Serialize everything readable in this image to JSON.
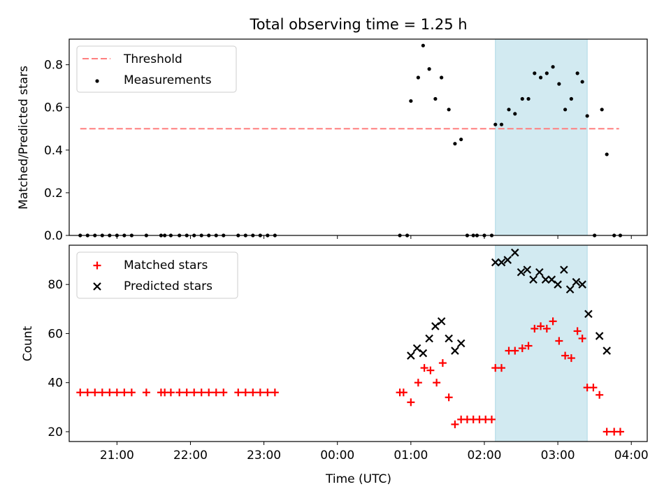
{
  "title": "Total observing time = 1.25 h",
  "xlabel": "Time (UTC)",
  "x_tick_labels": [
    "21:00",
    "22:00",
    "23:00",
    "00:00",
    "01:00",
    "02:00",
    "03:00",
    "04:00"
  ],
  "colors": {
    "threshold": "#ff7f7f",
    "measurement": "#000000",
    "matched": "#ff0000",
    "predicted": "#000000",
    "highlight": "#add8e6"
  },
  "chart_data": [
    {
      "type": "scatter",
      "ylabel": "Matched/Predicted stars",
      "xlim": [
        "20:21",
        "04:13"
      ],
      "ylim": [
        0,
        0.92
      ],
      "y_ticks": [
        "0.0",
        "0.2",
        "0.4",
        "0.6",
        "0.8"
      ],
      "grid": false,
      "legend_position": "top-left",
      "highlight_span": [
        "02:09",
        "03:24"
      ],
      "threshold": {
        "name": "Threshold",
        "value": 0.5,
        "x_range": [
          "20:30",
          "03:50"
        ],
        "style": "dashed"
      },
      "series": [
        {
          "name": "Measurements",
          "marker": "dot",
          "x": [
            "20:30",
            "20:36",
            "20:42",
            "20:48",
            "20:54",
            "21:00",
            "21:06",
            "21:12",
            "21:24",
            "21:36",
            "21:39",
            "21:44",
            "21:51",
            "21:57",
            "22:03",
            "22:09",
            "22:15",
            "22:21",
            "22:27",
            "22:39",
            "22:45",
            "22:51",
            "22:57",
            "23:03",
            "23:09",
            "00:51",
            "00:57",
            "01:00",
            "01:06",
            "01:10",
            "01:15",
            "01:20",
            "01:25",
            "01:31",
            "01:36",
            "01:41",
            "01:46",
            "01:51",
            "01:54",
            "02:00",
            "02:06",
            "02:09",
            "02:14",
            "02:20",
            "02:25",
            "02:31",
            "02:36",
            "02:41",
            "02:46",
            "02:51",
            "02:56",
            "03:01",
            "03:06",
            "03:11",
            "03:16",
            "03:20",
            "03:24",
            "03:30",
            "03:36",
            "03:40",
            "03:46",
            "03:51"
          ],
          "y": [
            0,
            0,
            0,
            0,
            0,
            0,
            0,
            0,
            0,
            0,
            0,
            0,
            0,
            0,
            0,
            0,
            0,
            0,
            0,
            0,
            0,
            0,
            0,
            0,
            0,
            0,
            0,
            0.63,
            0.74,
            0.89,
            0.78,
            0.64,
            0.74,
            0.59,
            0.43,
            0.45,
            0,
            0,
            0,
            0,
            0,
            0.52,
            0.52,
            0.59,
            0.57,
            0.64,
            0.64,
            0.76,
            0.74,
            0.76,
            0.79,
            0.71,
            0.59,
            0.64,
            0.76,
            0.72,
            0.56,
            0,
            0.59,
            0.38,
            0,
            0
          ]
        }
      ]
    },
    {
      "type": "scatter",
      "ylabel": "Count",
      "xlim": [
        "20:21",
        "04:13"
      ],
      "ylim": [
        16,
        96
      ],
      "y_ticks": [
        "20",
        "40",
        "60",
        "80"
      ],
      "grid": false,
      "legend_position": "top-left",
      "highlight_span": [
        "02:09",
        "03:24"
      ],
      "series": [
        {
          "name": "Matched stars",
          "marker": "plus",
          "x": [
            "20:30",
            "20:36",
            "20:42",
            "20:48",
            "20:54",
            "21:00",
            "21:06",
            "21:12",
            "21:24",
            "21:36",
            "21:39",
            "21:44",
            "21:51",
            "21:57",
            "22:03",
            "22:09",
            "22:15",
            "22:21",
            "22:27",
            "22:39",
            "22:45",
            "22:51",
            "22:57",
            "23:03",
            "23:09",
            "00:51",
            "00:54",
            "01:00",
            "01:06",
            "01:11",
            "01:16",
            "01:21",
            "01:26",
            "01:31",
            "01:36",
            "01:41",
            "01:46",
            "01:51",
            "01:56",
            "02:01",
            "02:06",
            "02:09",
            "02:14",
            "02:20",
            "02:25",
            "02:31",
            "02:36",
            "02:41",
            "02:46",
            "02:51",
            "02:56",
            "03:01",
            "03:06",
            "03:11",
            "03:16",
            "03:20",
            "03:24",
            "03:29",
            "03:34",
            "03:40",
            "03:46",
            "03:51"
          ],
          "y": [
            36,
            36,
            36,
            36,
            36,
            36,
            36,
            36,
            36,
            36,
            36,
            36,
            36,
            36,
            36,
            36,
            36,
            36,
            36,
            36,
            36,
            36,
            36,
            36,
            36,
            36,
            36,
            32,
            40,
            46,
            45,
            40,
            48,
            34,
            23,
            25,
            25,
            25,
            25,
            25,
            25,
            46,
            46,
            53,
            53,
            54,
            55,
            62,
            63,
            62,
            65,
            57,
            51,
            50,
            61,
            58,
            38,
            38,
            35,
            20,
            20,
            20
          ]
        },
        {
          "name": "Predicted stars",
          "marker": "x",
          "x": [
            "01:00",
            "01:05",
            "01:10",
            "01:15",
            "01:20",
            "01:25",
            "01:31",
            "01:36",
            "01:41",
            "02:09",
            "02:14",
            "02:19",
            "02:25",
            "02:30",
            "02:35",
            "02:40",
            "02:45",
            "02:50",
            "02:55",
            "03:00",
            "03:05",
            "03:10",
            "03:15",
            "03:20",
            "03:25",
            "03:34",
            "03:40"
          ],
          "y": [
            51,
            54,
            52,
            58,
            63,
            65,
            58,
            53,
            56,
            89,
            89,
            90,
            93,
            85,
            86,
            82,
            85,
            82,
            82,
            80,
            86,
            78,
            81,
            80,
            68,
            59,
            53
          ]
        }
      ]
    }
  ]
}
